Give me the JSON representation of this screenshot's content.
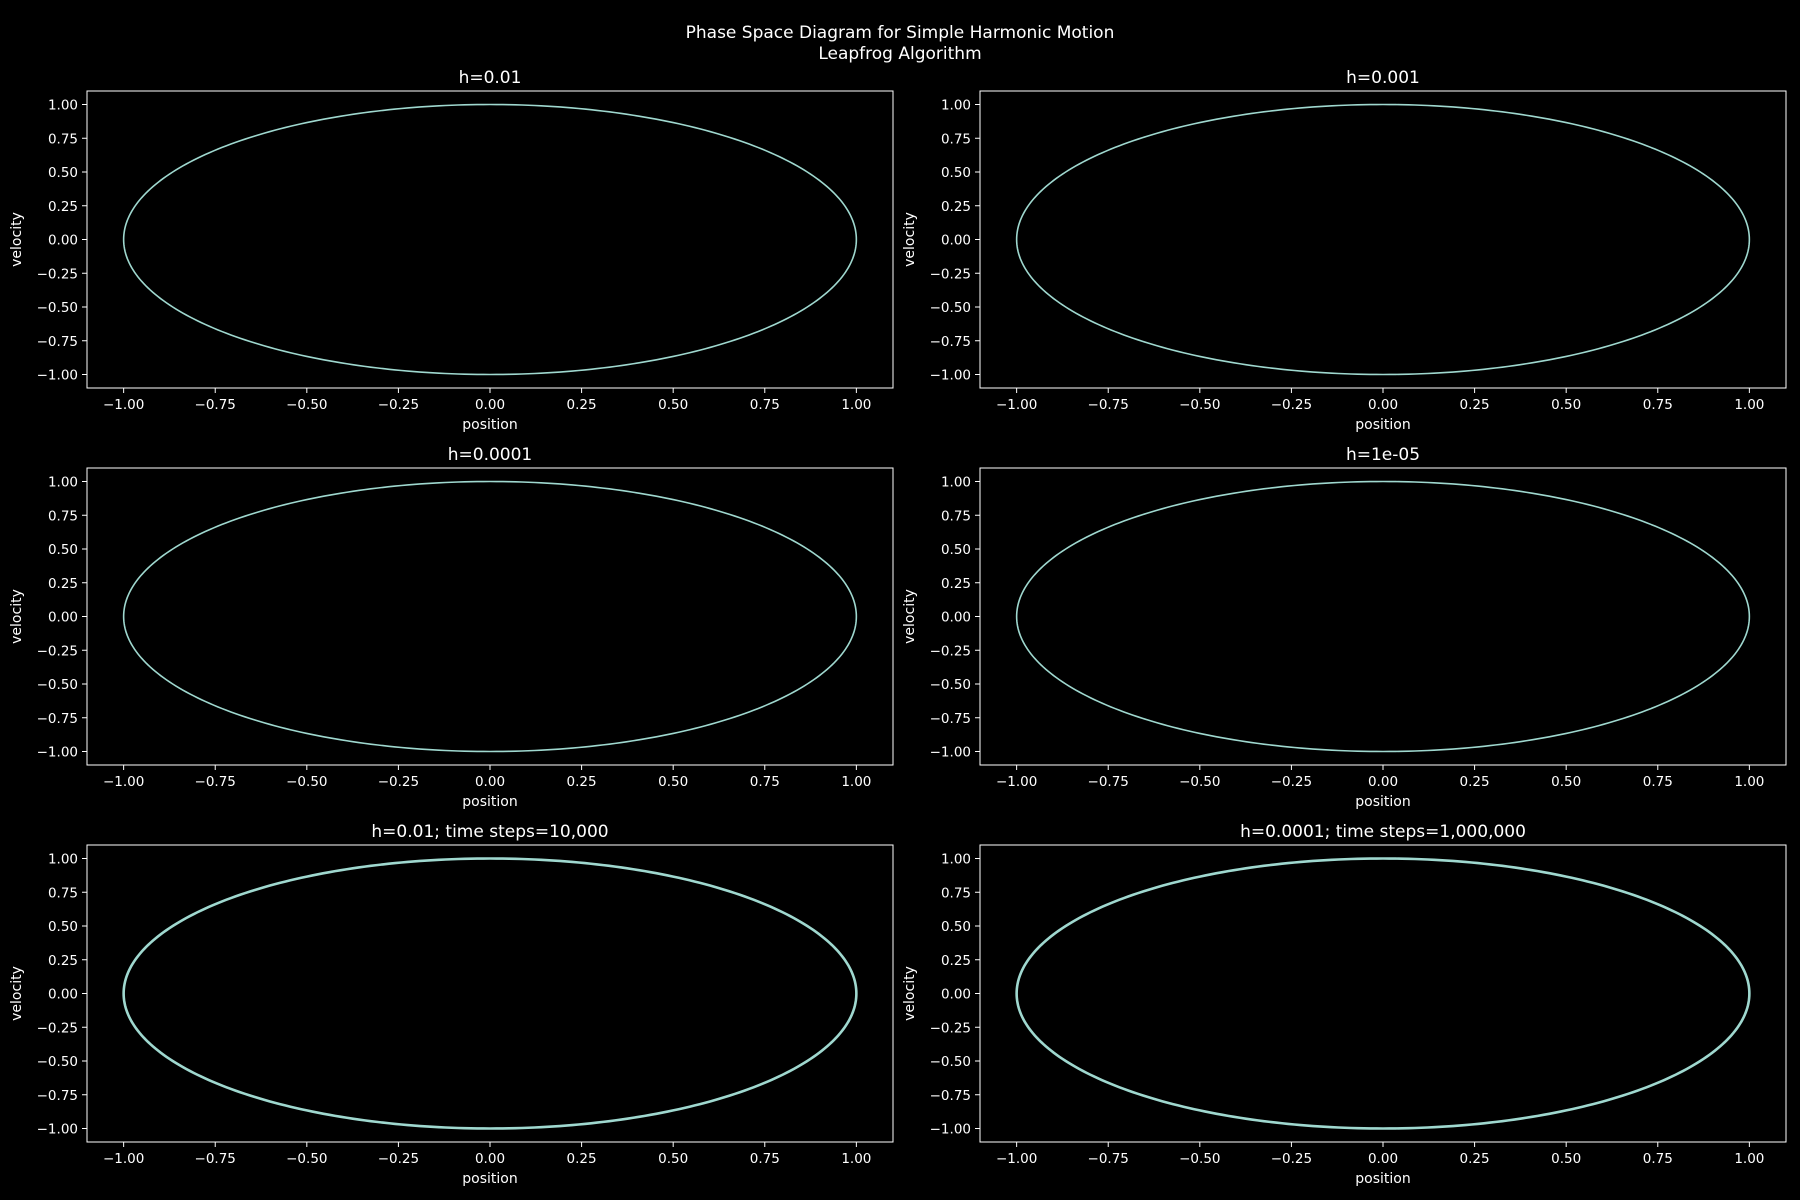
{
  "figure": {
    "title_line1": "Phase Space Diagram for Simple Harmonic Motion",
    "title_line2": "Leapfrog Algorithm",
    "background": "#000000",
    "foreground": "#ffffff",
    "line_color": "#9fd8cf"
  },
  "chart_data": [
    {
      "type": "line",
      "title": "h=0.01",
      "xlabel": "position",
      "ylabel": "velocity",
      "xlim": [
        -1.1,
        1.1
      ],
      "ylim": [
        -1.1,
        1.1
      ],
      "xticks": [
        "−1.00",
        "−0.75",
        "−0.50",
        "−0.25",
        "0.00",
        "0.25",
        "0.50",
        "0.75",
        "1.00"
      ],
      "yticks": [
        "−1.00",
        "−0.75",
        "−0.50",
        "−0.25",
        "0.00",
        "0.25",
        "0.50",
        "0.75",
        "1.00"
      ],
      "series": [
        {
          "curve": "circle",
          "amplitude": 1.0,
          "center": [
            0,
            0
          ]
        }
      ]
    },
    {
      "type": "line",
      "title": "h=0.001",
      "xlabel": "position",
      "ylabel": "velocity",
      "xlim": [
        -1.1,
        1.1
      ],
      "ylim": [
        -1.1,
        1.1
      ],
      "xticks": [
        "−1.00",
        "−0.75",
        "−0.50",
        "−0.25",
        "0.00",
        "0.25",
        "0.50",
        "0.75",
        "1.00"
      ],
      "yticks": [
        "−1.00",
        "−0.75",
        "−0.50",
        "−0.25",
        "0.00",
        "0.25",
        "0.50",
        "0.75",
        "1.00"
      ],
      "series": [
        {
          "curve": "circle",
          "amplitude": 1.0,
          "center": [
            0,
            0
          ]
        }
      ]
    },
    {
      "type": "line",
      "title": "h=0.0001",
      "xlabel": "position",
      "ylabel": "velocity",
      "xlim": [
        -1.1,
        1.1
      ],
      "ylim": [
        -1.1,
        1.1
      ],
      "xticks": [
        "−1.00",
        "−0.75",
        "−0.50",
        "−0.25",
        "0.00",
        "0.25",
        "0.50",
        "0.75",
        "1.00"
      ],
      "yticks": [
        "−1.00",
        "−0.75",
        "−0.50",
        "−0.25",
        "0.00",
        "0.25",
        "0.50",
        "0.75",
        "1.00"
      ],
      "series": [
        {
          "curve": "circle",
          "amplitude": 1.0,
          "center": [
            0,
            0
          ]
        }
      ]
    },
    {
      "type": "line",
      "title": "h=1e-05",
      "xlabel": "position",
      "ylabel": "velocity",
      "xlim": [
        -1.1,
        1.1
      ],
      "ylim": [
        -1.1,
        1.1
      ],
      "xticks": [
        "−1.00",
        "−0.75",
        "−0.50",
        "−0.25",
        "0.00",
        "0.25",
        "0.50",
        "0.75",
        "1.00"
      ],
      "yticks": [
        "−1.00",
        "−0.75",
        "−0.50",
        "−0.25",
        "0.00",
        "0.25",
        "0.50",
        "0.75",
        "1.00"
      ],
      "series": [
        {
          "curve": "circle",
          "amplitude": 1.0,
          "center": [
            0,
            0
          ]
        }
      ]
    },
    {
      "type": "line",
      "title": "h=0.01; time steps=10,000",
      "xlabel": "position",
      "ylabel": "velocity",
      "xlim": [
        -1.1,
        1.1
      ],
      "ylim": [
        -1.1,
        1.1
      ],
      "xticks": [
        "−1.00",
        "−0.75",
        "−0.50",
        "−0.25",
        "0.00",
        "0.25",
        "0.50",
        "0.75",
        "1.00"
      ],
      "yticks": [
        "−1.00",
        "−0.75",
        "−0.50",
        "−0.25",
        "0.00",
        "0.25",
        "0.50",
        "0.75",
        "1.00"
      ],
      "series": [
        {
          "curve": "circle",
          "amplitude": 1.0,
          "center": [
            0,
            0
          ],
          "thick": true
        }
      ]
    },
    {
      "type": "line",
      "title": "h=0.0001; time steps=1,000,000",
      "xlabel": "position",
      "ylabel": "velocity",
      "xlim": [
        -1.1,
        1.1
      ],
      "ylim": [
        -1.1,
        1.1
      ],
      "xticks": [
        "−1.00",
        "−0.75",
        "−0.50",
        "−0.25",
        "0.00",
        "0.25",
        "0.50",
        "0.75",
        "1.00"
      ],
      "yticks": [
        "−1.00",
        "−0.75",
        "−0.50",
        "−0.25",
        "0.00",
        "0.25",
        "0.50",
        "0.75",
        "1.00"
      ],
      "series": [
        {
          "curve": "circle",
          "amplitude": 1.0,
          "center": [
            0,
            0
          ],
          "thick": true
        }
      ]
    }
  ]
}
